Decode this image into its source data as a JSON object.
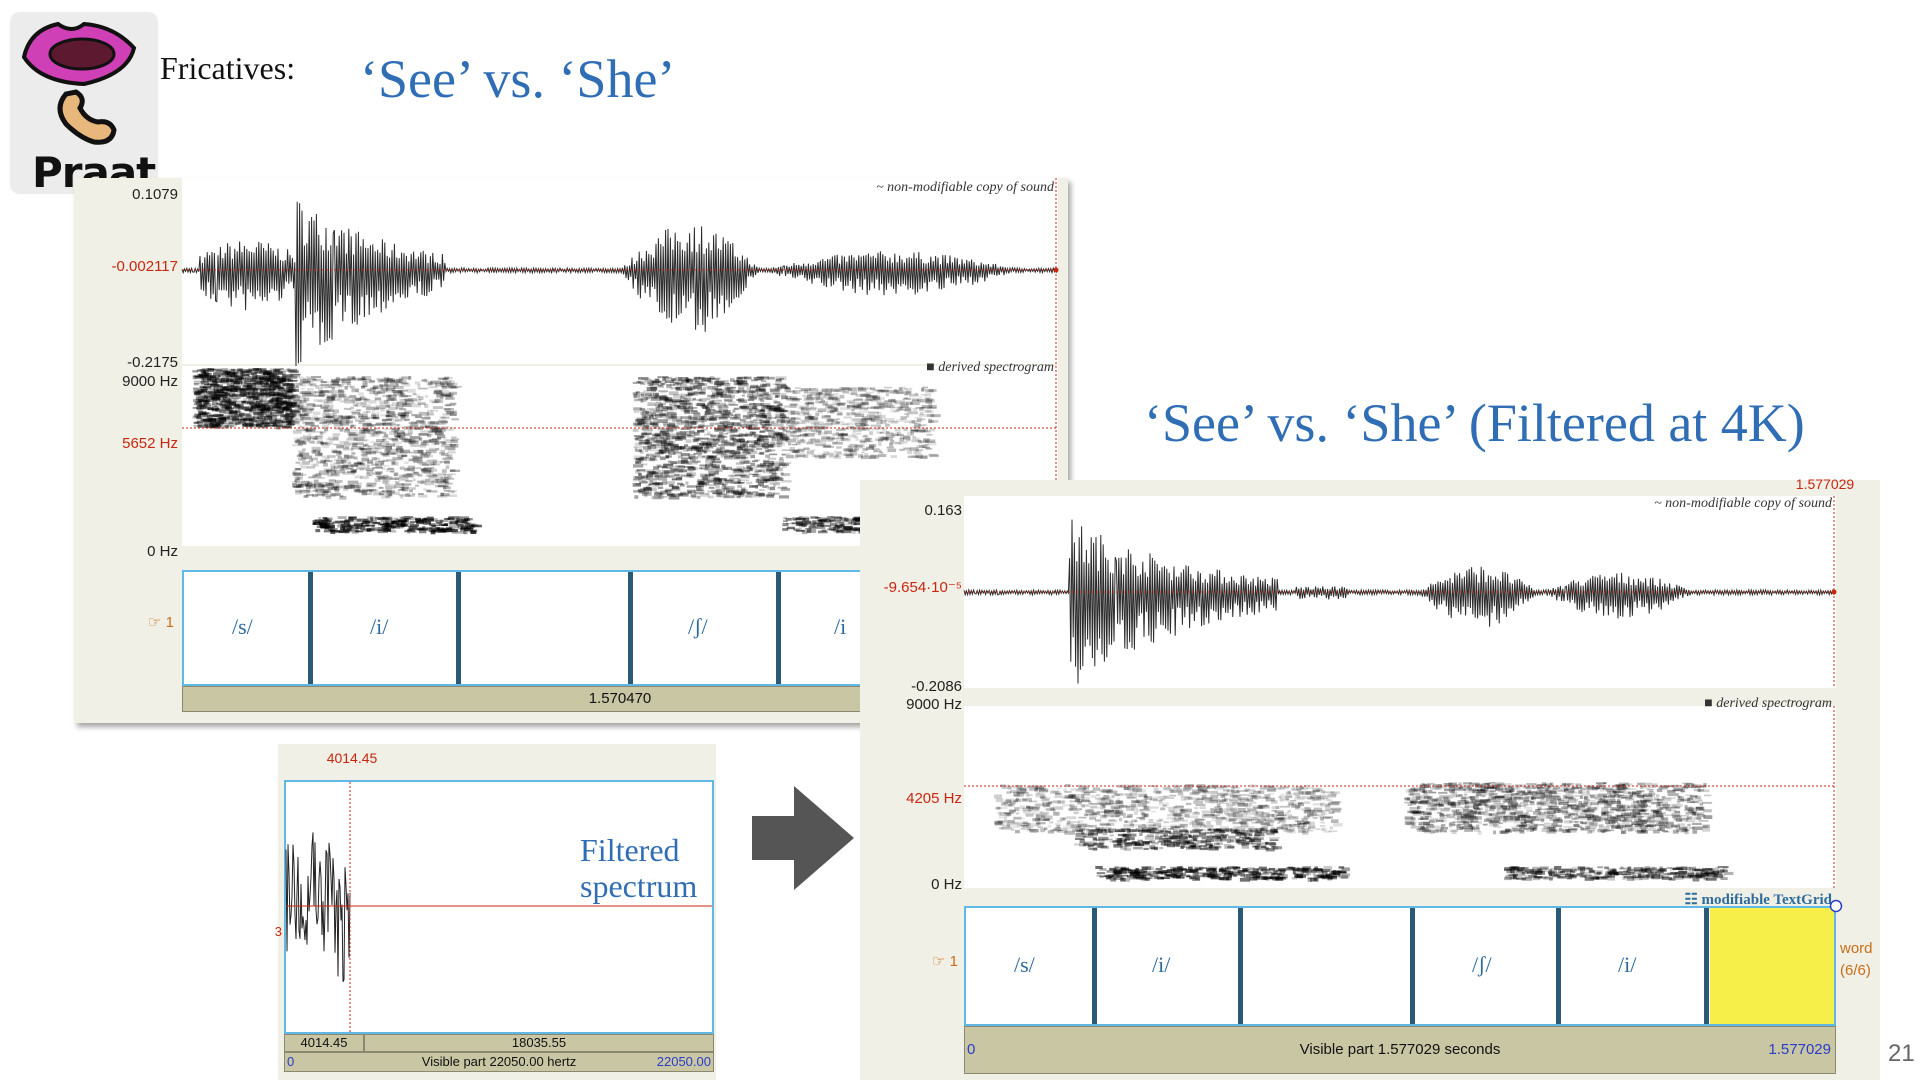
{
  "slide": {
    "heading_fragment": "Fricatives:",
    "title1": "‘See’ vs. ‘She’",
    "title2": "‘See’ vs. ‘She’ (Filtered at 4K)",
    "page_number": "21",
    "logo_text": "Praat"
  },
  "editor1": {
    "wave_top": "0.1079",
    "wave_mid": "-0.002117",
    "wave_bottom": "-0.2175",
    "spec_top": "9000 Hz",
    "spec_mid": "5652 Hz",
    "spec_bottom": "0 Hz",
    "sound_label": "~ non-modifiable copy of sound",
    "spec_label": "■ derived spectrogram",
    "tier_number": "☞ 1",
    "intervals": [
      "/s/",
      "/i/",
      "",
      "/ʃ/",
      "/i"
    ],
    "time_bar": "1.570470"
  },
  "spectrum": {
    "cursor_value": "4014.45",
    "left_bar": "4014.45",
    "right_bar": "18035.55",
    "visible_left": "0",
    "visible_text": "Visible part 22050.00 hertz",
    "visible_right": "22050.00",
    "side_mark": "3",
    "caption_line1": "Filtered",
    "caption_line2": "spectrum"
  },
  "editor2": {
    "cursor_top": "1.577029",
    "wave_top": "0.163",
    "wave_mid": "-9.654·10⁻⁵",
    "wave_bottom": "-0.2086",
    "spec_top": "9000 Hz",
    "spec_mid": "4205 Hz",
    "spec_bottom": "0 Hz",
    "sound_label": "~ non-modifiable copy of sound",
    "spec_label": "■ derived spectrogram",
    "textgrid_label": "☷ modifiable TextGrid",
    "tier_number": "☞ 1",
    "intervals": [
      "/s/",
      "/i/",
      "",
      "/ʃ/",
      "/i/",
      ""
    ],
    "tier_name": "word",
    "tier_count": "(6/6)",
    "visible_left": "0",
    "visible_text": "Visible part 1.577029 seconds",
    "visible_right": "1.577029"
  },
  "colors": {
    "title_blue": "#2f6db5",
    "cursor_red": "#c8260f",
    "tier_border": "#5fb8e6",
    "boundary": "#2b5a76",
    "selected_interval": "#f6ef4a",
    "panel_bg": "#f1f0e6",
    "arrow": "#555555"
  }
}
